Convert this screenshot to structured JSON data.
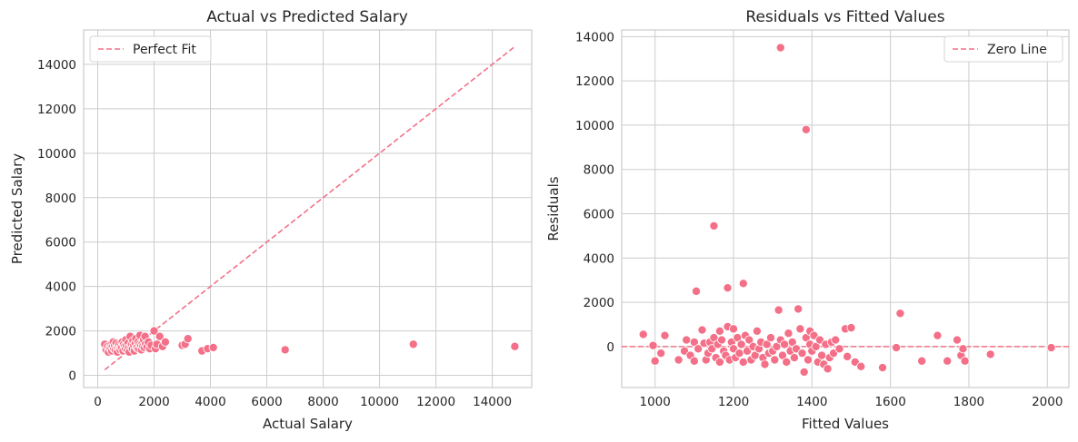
{
  "chart_data": [
    {
      "type": "scatter",
      "title": "Actual vs Predicted Salary",
      "xlabel": "Actual Salary",
      "ylabel": "Predicted Salary",
      "xlim": [
        -500,
        15400
      ],
      "ylim": [
        -550,
        15550
      ],
      "xticks": [
        0,
        2000,
        4000,
        6000,
        8000,
        10000,
        12000,
        14000
      ],
      "xtick_labels": [
        "0",
        "2000",
        "4000",
        "6000",
        "8000",
        "10000",
        "12000",
        "14000"
      ],
      "yticks": [
        0,
        2000,
        4000,
        6000,
        8000,
        10000,
        12000,
        14000
      ],
      "ytick_labels": [
        "0",
        "2000",
        "4000",
        "6000",
        "8000",
        "10000",
        "12000",
        "14000"
      ],
      "grid": true,
      "legend": {
        "location": "upper left",
        "entries": [
          "Perfect Fit"
        ]
      },
      "reference_line": {
        "name": "Perfect Fit",
        "style": "dashed",
        "from": [
          250,
          250
        ],
        "to": [
          14800,
          14800
        ]
      },
      "points": [
        [
          250,
          1400
        ],
        [
          300,
          1150
        ],
        [
          350,
          1300
        ],
        [
          380,
          1050
        ],
        [
          420,
          1250
        ],
        [
          450,
          1200
        ],
        [
          480,
          1400
        ],
        [
          500,
          1100
        ],
        [
          520,
          1300
        ],
        [
          550,
          1500
        ],
        [
          570,
          1200
        ],
        [
          600,
          1350
        ],
        [
          620,
          1150
        ],
        [
          650,
          1450
        ],
        [
          680,
          1250
        ],
        [
          700,
          1050
        ],
        [
          720,
          1300
        ],
        [
          750,
          1400
        ],
        [
          780,
          1200
        ],
        [
          800,
          1150
        ],
        [
          820,
          1350
        ],
        [
          850,
          1250
        ],
        [
          870,
          1500
        ],
        [
          900,
          1100
        ],
        [
          920,
          1400
        ],
        [
          950,
          1300
        ],
        [
          980,
          1200
        ],
        [
          1000,
          1600
        ],
        [
          1020,
          1350
        ],
        [
          1050,
          1150
        ],
        [
          1080,
          1450
        ],
        [
          1100,
          1250
        ],
        [
          1120,
          1050
        ],
        [
          1150,
          1750
        ],
        [
          1180,
          1300
        ],
        [
          1200,
          1400
        ],
        [
          1230,
          1200
        ],
        [
          1250,
          1550
        ],
        [
          1280,
          1350
        ],
        [
          1300,
          1100
        ],
        [
          1330,
          1450
        ],
        [
          1350,
          1650
        ],
        [
          1380,
          1250
        ],
        [
          1400,
          1300
        ],
        [
          1430,
          1500
        ],
        [
          1450,
          1200
        ],
        [
          1480,
          1400
        ],
        [
          1500,
          1800
        ],
        [
          1530,
          1350
        ],
        [
          1550,
          1150
        ],
        [
          1580,
          1450
        ],
        [
          1600,
          1300
        ],
        [
          1630,
          1600
        ],
        [
          1650,
          1250
        ],
        [
          1680,
          1750
        ],
        [
          1700,
          1400
        ],
        [
          1750,
          1300
        ],
        [
          1800,
          1500
        ],
        [
          1850,
          1200
        ],
        [
          1900,
          1350
        ],
        [
          2000,
          2000
        ],
        [
          2050,
          1200
        ],
        [
          2100,
          1400
        ],
        [
          2200,
          1750
        ],
        [
          2300,
          1300
        ],
        [
          2400,
          1500
        ],
        [
          3000,
          1350
        ],
        [
          3100,
          1400
        ],
        [
          3200,
          1650
        ],
        [
          3700,
          1100
        ],
        [
          3900,
          1200
        ],
        [
          4100,
          1250
        ],
        [
          6650,
          1150
        ],
        [
          11200,
          1400
        ],
        [
          14800,
          1300
        ]
      ]
    },
    {
      "type": "scatter",
      "title": "Residuals vs Fitted Values",
      "xlabel": "Fitted Values",
      "ylabel": "Residuals",
      "xlim": [
        915,
        2055
      ],
      "ylim": [
        -1850,
        14300
      ],
      "xticks": [
        1000,
        1200,
        1400,
        1600,
        1800,
        2000
      ],
      "xtick_labels": [
        "1000",
        "1200",
        "1400",
        "1600",
        "1800",
        "2000"
      ],
      "yticks": [
        0,
        2000,
        4000,
        6000,
        8000,
        10000,
        12000,
        14000
      ],
      "ytick_labels": [
        "0",
        "2000",
        "4000",
        "6000",
        "8000",
        "10000",
        "12000",
        "14000"
      ],
      "grid": true,
      "legend": {
        "location": "upper right",
        "entries": [
          "Zero Line"
        ]
      },
      "reference_line": {
        "name": "Zero Line",
        "style": "dashed",
        "y": 0
      },
      "points": [
        [
          970,
          550
        ],
        [
          995,
          50
        ],
        [
          1000,
          -650
        ],
        [
          1015,
          -300
        ],
        [
          1025,
          500
        ],
        [
          1060,
          -600
        ],
        [
          1075,
          -200
        ],
        [
          1080,
          300
        ],
        [
          1090,
          -400
        ],
        [
          1100,
          -650
        ],
        [
          1100,
          200
        ],
        [
          1105,
          2500
        ],
        [
          1110,
          -100
        ],
        [
          1120,
          750
        ],
        [
          1125,
          150
        ],
        [
          1130,
          -600
        ],
        [
          1135,
          -300
        ],
        [
          1140,
          200
        ],
        [
          1145,
          -100
        ],
        [
          1150,
          5450
        ],
        [
          1150,
          400
        ],
        [
          1155,
          -500
        ],
        [
          1160,
          100
        ],
        [
          1165,
          700
        ],
        [
          1165,
          -700
        ],
        [
          1170,
          300
        ],
        [
          1175,
          -200
        ],
        [
          1180,
          -400
        ],
        [
          1185,
          900
        ],
        [
          1185,
          2650
        ],
        [
          1190,
          -600
        ],
        [
          1195,
          200
        ],
        [
          1200,
          -100
        ],
        [
          1200,
          800
        ],
        [
          1205,
          -500
        ],
        [
          1210,
          400
        ],
        [
          1215,
          -300
        ],
        [
          1220,
          100
        ],
        [
          1225,
          2850
        ],
        [
          1225,
          -700
        ],
        [
          1230,
          500
        ],
        [
          1235,
          -200
        ],
        [
          1240,
          300
        ],
        [
          1245,
          -600
        ],
        [
          1250,
          0
        ],
        [
          1255,
          -400
        ],
        [
          1260,
          700
        ],
        [
          1265,
          -100
        ],
        [
          1270,
          200
        ],
        [
          1275,
          -500
        ],
        [
          1280,
          -800
        ],
        [
          1285,
          100
        ],
        [
          1290,
          -300
        ],
        [
          1295,
          400
        ],
        [
          1300,
          -200
        ],
        [
          1305,
          -600
        ],
        [
          1310,
          0
        ],
        [
          1315,
          1650
        ],
        [
          1320,
          13500
        ],
        [
          1320,
          300
        ],
        [
          1325,
          -400
        ],
        [
          1330,
          100
        ],
        [
          1335,
          -700
        ],
        [
          1340,
          600
        ],
        [
          1345,
          -200
        ],
        [
          1350,
          200
        ],
        [
          1355,
          -500
        ],
        [
          1360,
          -100
        ],
        [
          1365,
          1700
        ],
        [
          1370,
          800
        ],
        [
          1375,
          -300
        ],
        [
          1380,
          -1150
        ],
        [
          1385,
          9800
        ],
        [
          1385,
          400
        ],
        [
          1390,
          -600
        ],
        [
          1395,
          100
        ],
        [
          1395,
          700
        ],
        [
          1400,
          -200
        ],
        [
          1405,
          500
        ],
        [
          1410,
          0
        ],
        [
          1415,
          -700
        ],
        [
          1420,
          300
        ],
        [
          1425,
          -400
        ],
        [
          1430,
          -800
        ],
        [
          1435,
          100
        ],
        [
          1440,
          -1000
        ],
        [
          1445,
          -500
        ],
        [
          1450,
          200
        ],
        [
          1455,
          -300
        ],
        [
          1460,
          300
        ],
        [
          1470,
          -100
        ],
        [
          1485,
          800
        ],
        [
          1490,
          -450
        ],
        [
          1500,
          850
        ],
        [
          1510,
          -700
        ],
        [
          1525,
          -900
        ],
        [
          1580,
          -950
        ],
        [
          1615,
          -50
        ],
        [
          1625,
          1500
        ],
        [
          1680,
          -650
        ],
        [
          1720,
          500
        ],
        [
          1745,
          -650
        ],
        [
          1770,
          300
        ],
        [
          1780,
          -400
        ],
        [
          1785,
          -100
        ],
        [
          1790,
          -650
        ],
        [
          1855,
          -350
        ],
        [
          2010,
          -50
        ]
      ]
    }
  ]
}
